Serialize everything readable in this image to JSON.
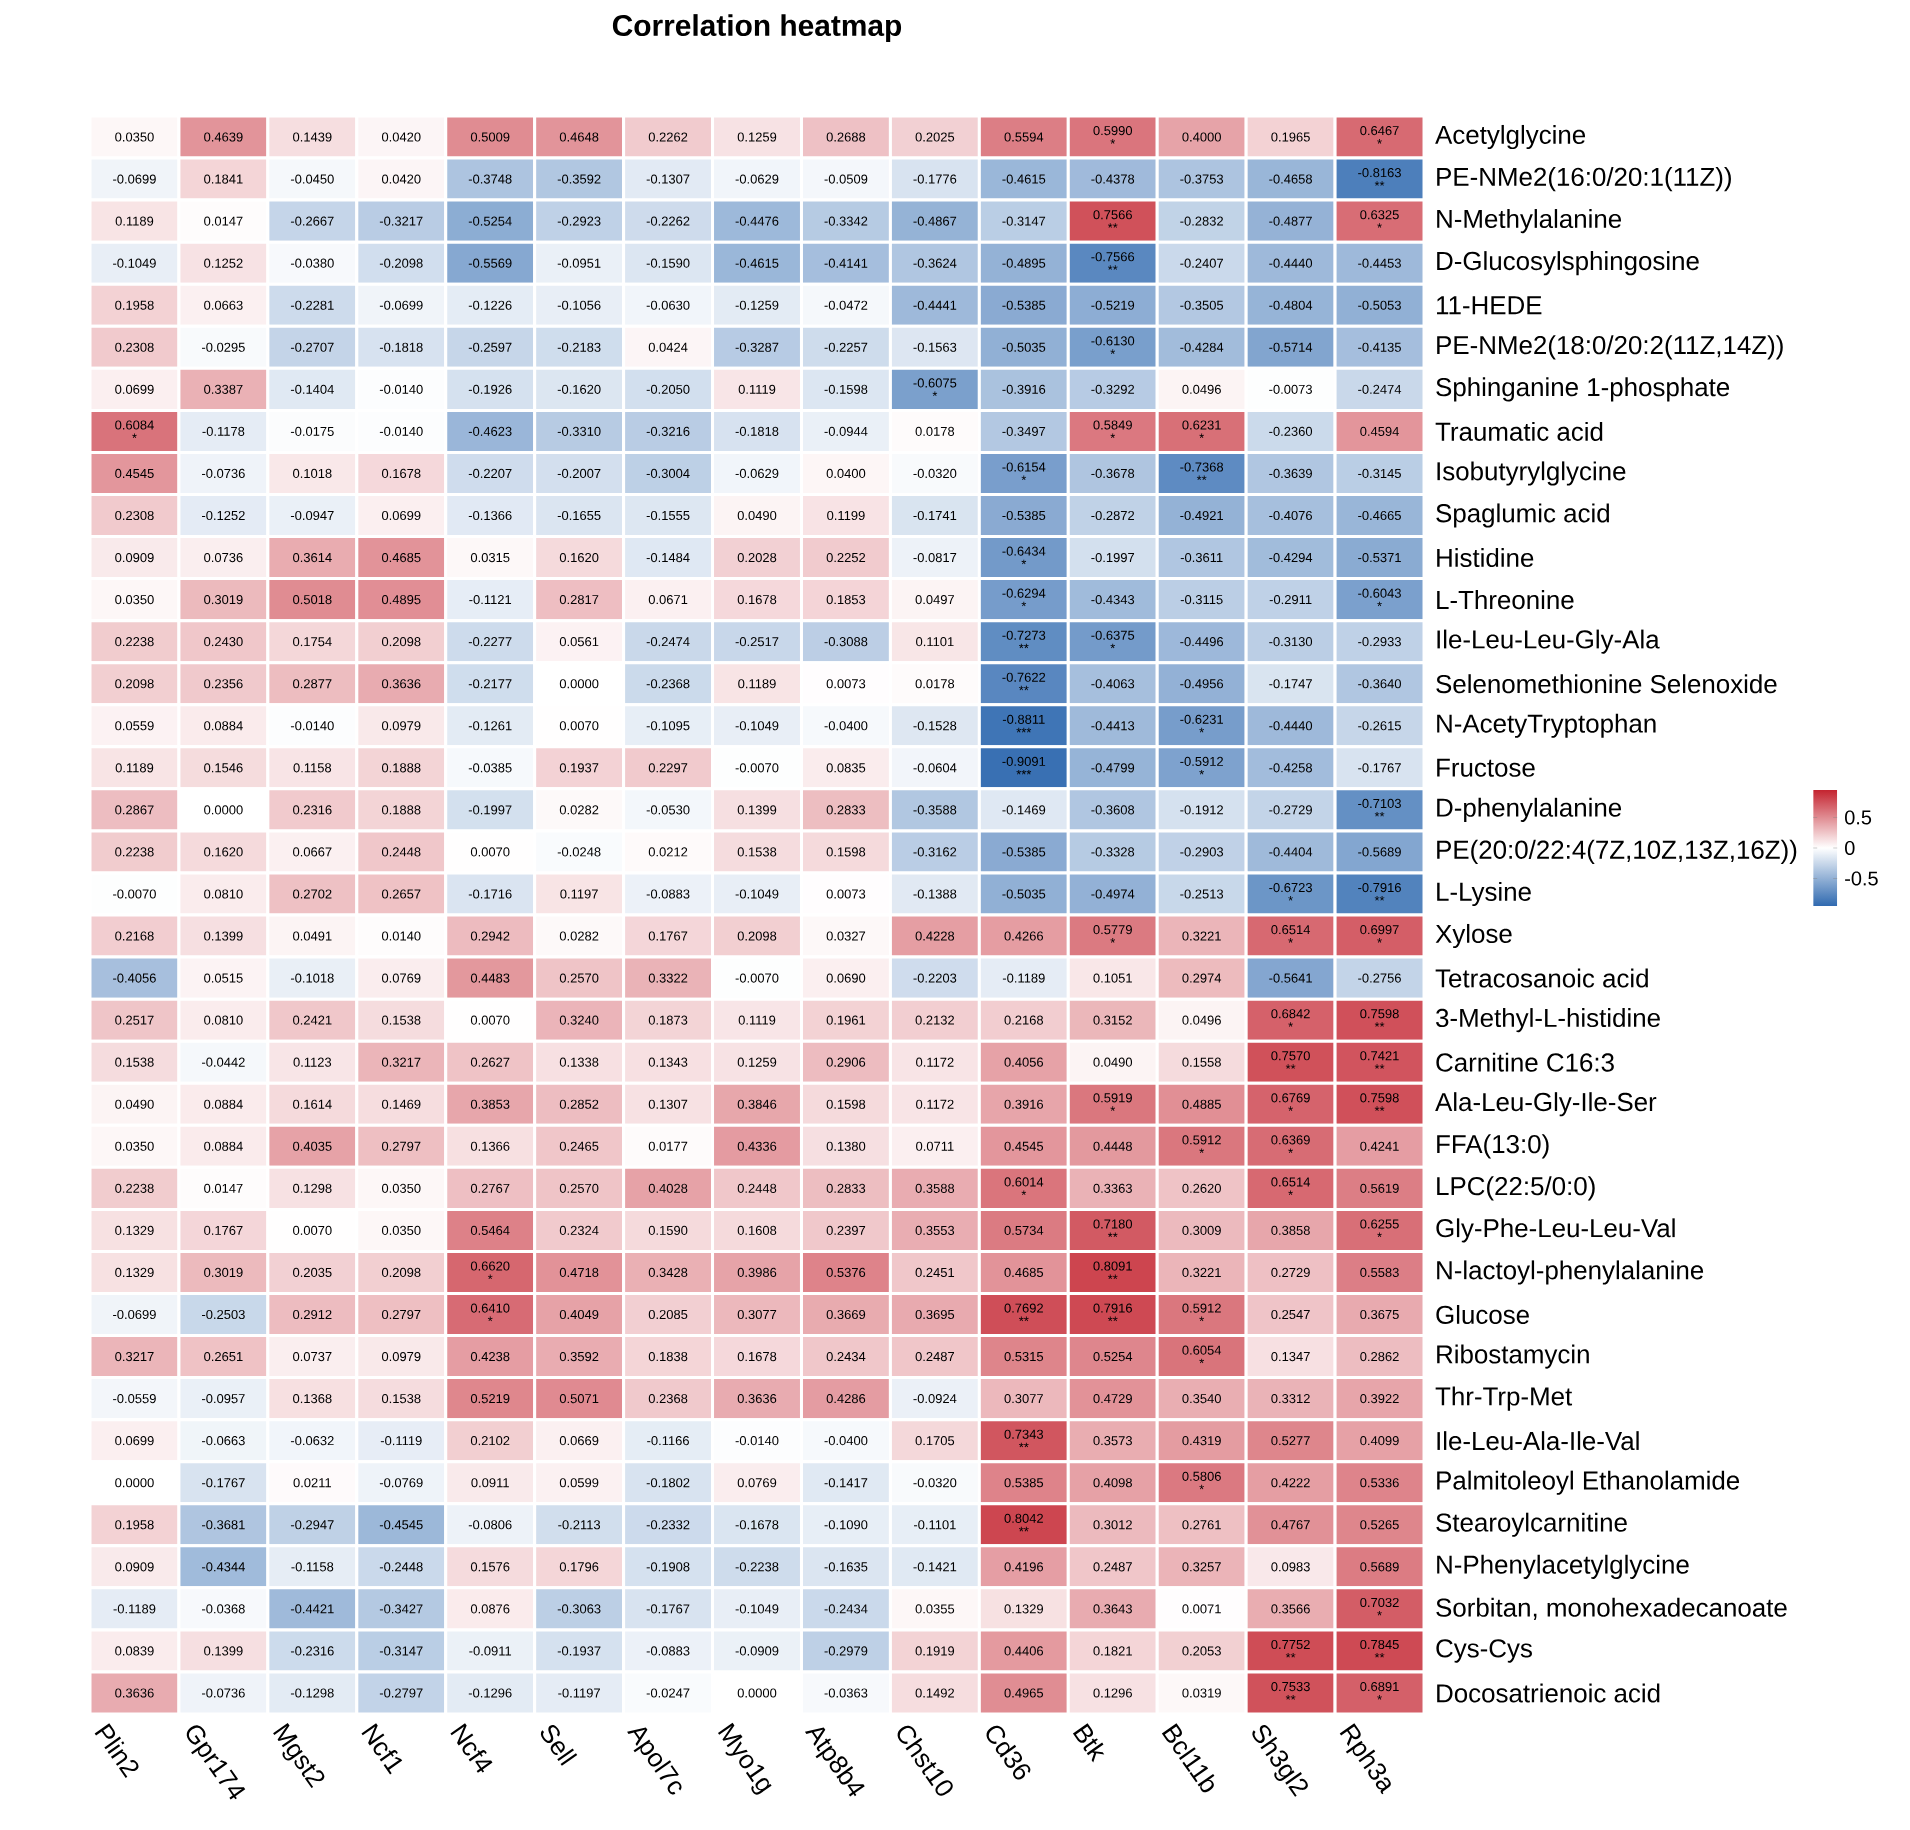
{
  "chart_data": {
    "type": "heatmap",
    "title": "Correlation heatmap",
    "categories": [
      "Plin2",
      "Gpr174",
      "Mgst2",
      "Ncf1",
      "Ncf4",
      "Sell",
      "Apol7c",
      "Myo1g",
      "Atp8b4",
      "Chst10",
      "Cd36",
      "Btk",
      "Bcl11b",
      "Sh3gl2",
      "Rph3a"
    ],
    "y_categories": [
      "Acetylglycine",
      "PE-NMe2(16:0/20:1(11Z))",
      "N-Methylalanine",
      "D-Glucosylsphingosine",
      "11-HEDE",
      "PE-NMe2(18:0/20:2(11Z,14Z))",
      "Sphinganine 1-phosphate",
      "Traumatic acid",
      "Isobutyrylglycine",
      "Spaglumic acid",
      "Histidine",
      "L-Threonine",
      "Ile-Leu-Leu-Gly-Ala",
      "Selenomethionine Selenoxide",
      "N-AcetyTryptophan",
      "Fructose",
      "D-phenylalanine",
      "PE(20:0/22:4(7Z,10Z,13Z,16Z))",
      "L-Lysine",
      "Xylose",
      "Tetracosanoic acid",
      "3-Methyl-L-histidine",
      "Carnitine C16:3",
      "Ala-Leu-Gly-Ile-Ser",
      "FFA(13:0)",
      "LPC(22:5/0:0)",
      "Gly-Phe-Leu-Leu-Val",
      "N-lactoyl-phenylalanine",
      "Glucose",
      "Ribostamycin",
      "Thr-Trp-Met",
      "Ile-Leu-Ala-Ile-Val",
      "Palmitoleoyl Ethanolamide",
      "Stearoylcarnitine",
      "N-Phenylacetylglycine",
      "Sorbitan, monohexadecanoate",
      "Cys-Cys",
      "Docosatrienoic acid"
    ],
    "cells": [
      [
        0.035,
        0.4639,
        0.1439,
        0.042,
        0.5009,
        0.4648,
        0.2262,
        0.1259,
        0.2688,
        0.2025,
        0.5594,
        0.599,
        0.4,
        0.1965,
        0.6467
      ],
      [
        -0.0699,
        0.1841,
        -0.045,
        0.042,
        -0.3748,
        -0.3592,
        -0.1307,
        -0.0629,
        -0.0509,
        -0.1776,
        -0.4615,
        -0.4378,
        -0.3753,
        -0.4658,
        -0.8163
      ],
      [
        0.1189,
        0.0147,
        -0.2667,
        -0.3217,
        -0.5254,
        -0.2923,
        -0.2262,
        -0.4476,
        -0.3342,
        -0.4867,
        -0.3147,
        0.7566,
        -0.2832,
        -0.4877,
        0.6325
      ],
      [
        -0.1049,
        0.1252,
        -0.038,
        -0.2098,
        -0.5569,
        -0.0951,
        -0.159,
        -0.4615,
        -0.4141,
        -0.3624,
        -0.4895,
        -0.7566,
        -0.2407,
        -0.444,
        -0.4453
      ],
      [
        0.1958,
        0.0663,
        -0.2281,
        -0.0699,
        -0.1226,
        -0.1056,
        -0.063,
        -0.1259,
        -0.0472,
        -0.4441,
        -0.5385,
        -0.5219,
        -0.3505,
        -0.4804,
        -0.5053
      ],
      [
        0.2308,
        -0.0295,
        -0.2707,
        -0.1818,
        -0.2597,
        -0.2183,
        0.0424,
        -0.3287,
        -0.2257,
        -0.1563,
        -0.5035,
        -0.613,
        -0.4284,
        -0.5714,
        -0.4135
      ],
      [
        0.0699,
        0.3387,
        -0.1404,
        -0.014,
        -0.1926,
        -0.162,
        -0.205,
        0.1119,
        -0.1598,
        -0.6075,
        -0.3916,
        -0.3292,
        0.0496,
        -0.0073,
        -0.2474
      ],
      [
        0.6084,
        -0.1178,
        -0.0175,
        -0.014,
        -0.4623,
        -0.331,
        -0.3216,
        -0.1818,
        -0.0944,
        0.0178,
        -0.3497,
        0.5849,
        0.6231,
        -0.236,
        0.4594
      ],
      [
        0.4545,
        -0.0736,
        0.1018,
        0.1678,
        -0.2207,
        -0.2007,
        -0.3004,
        -0.0629,
        0.04,
        -0.032,
        -0.6154,
        -0.3678,
        -0.7368,
        -0.3639,
        -0.3145
      ],
      [
        0.2308,
        -0.1252,
        -0.0947,
        0.0699,
        -0.1366,
        -0.1655,
        -0.1555,
        0.049,
        0.1199,
        -0.1741,
        -0.5385,
        -0.2872,
        -0.4921,
        -0.4076,
        -0.4665
      ],
      [
        0.0909,
        0.0736,
        0.3614,
        0.4685,
        0.0315,
        0.162,
        -0.1484,
        0.2028,
        0.2252,
        -0.0817,
        -0.6434,
        -0.1997,
        -0.3611,
        -0.4294,
        -0.5371
      ],
      [
        0.035,
        0.3019,
        0.5018,
        0.4895,
        -0.1121,
        0.2817,
        0.0671,
        0.1678,
        0.1853,
        0.0497,
        -0.6294,
        -0.4343,
        -0.3115,
        -0.2911,
        -0.6043
      ],
      [
        0.2238,
        0.243,
        0.1754,
        0.2098,
        -0.2277,
        0.0561,
        -0.2474,
        -0.2517,
        -0.3088,
        0.1101,
        -0.7273,
        -0.6375,
        -0.4496,
        -0.313,
        -0.2933
      ],
      [
        0.2098,
        0.2356,
        0.2877,
        0.3636,
        -0.2177,
        0.0,
        -0.2368,
        0.1189,
        0.0073,
        0.0178,
        -0.7622,
        -0.4063,
        -0.4956,
        -0.1747,
        -0.364
      ],
      [
        0.0559,
        0.0884,
        -0.014,
        0.0979,
        -0.1261,
        0.007,
        -0.1095,
        -0.1049,
        -0.04,
        -0.1528,
        -0.8811,
        -0.4413,
        -0.6231,
        -0.444,
        -0.2615
      ],
      [
        0.1189,
        0.1546,
        0.1158,
        0.1888,
        -0.0385,
        0.1937,
        0.2297,
        -0.007,
        0.0835,
        -0.0604,
        -0.9091,
        -0.4799,
        -0.5912,
        -0.4258,
        -0.1767
      ],
      [
        0.2867,
        0.0,
        0.2316,
        0.1888,
        -0.1997,
        0.0282,
        -0.053,
        0.1399,
        0.2833,
        -0.3588,
        -0.1469,
        -0.3608,
        -0.1912,
        -0.2729,
        -0.7103
      ],
      [
        0.2238,
        0.162,
        0.0667,
        0.2448,
        0.007,
        -0.0248,
        0.0212,
        0.1538,
        0.1598,
        -0.3162,
        -0.5385,
        -0.3328,
        -0.2903,
        -0.4404,
        -0.5689
      ],
      [
        -0.007,
        0.081,
        0.2702,
        0.2657,
        -0.1716,
        0.1197,
        -0.0883,
        -0.1049,
        0.0073,
        -0.1388,
        -0.5035,
        -0.4974,
        -0.2513,
        -0.6723,
        -0.7916
      ],
      [
        0.2168,
        0.1399,
        0.0491,
        0.014,
        0.2942,
        0.0282,
        0.1767,
        0.2098,
        0.0327,
        0.4228,
        0.4266,
        0.5779,
        0.3221,
        0.6514,
        0.6997
      ],
      [
        -0.4056,
        0.0515,
        -0.1018,
        0.0769,
        0.4483,
        0.257,
        0.3322,
        -0.007,
        0.069,
        -0.2203,
        -0.1189,
        0.1051,
        0.2974,
        -0.5641,
        -0.2756
      ],
      [
        0.2517,
        0.081,
        0.2421,
        0.1538,
        0.007,
        0.324,
        0.1873,
        0.1119,
        0.1961,
        0.2132,
        0.2168,
        0.3152,
        0.0496,
        0.6842,
        0.7598
      ],
      [
        0.1538,
        -0.0442,
        0.1123,
        0.3217,
        0.2627,
        0.1338,
        0.1343,
        0.1259,
        0.2906,
        0.1172,
        0.4056,
        0.049,
        0.1558,
        0.757,
        0.7421
      ],
      [
        0.049,
        0.0884,
        0.1614,
        0.1469,
        0.3853,
        0.2852,
        0.1307,
        0.3846,
        0.1598,
        0.1172,
        0.3916,
        0.5919,
        0.4885,
        0.6769,
        0.7598
      ],
      [
        0.035,
        0.0884,
        0.4035,
        0.2797,
        0.1366,
        0.2465,
        0.0177,
        0.4336,
        0.138,
        0.0711,
        0.4545,
        0.4448,
        0.5912,
        0.6369,
        0.4241
      ],
      [
        0.2238,
        0.0147,
        0.1298,
        0.035,
        0.2767,
        0.257,
        0.4028,
        0.2448,
        0.2833,
        0.3588,
        0.6014,
        0.3363,
        0.262,
        0.6514,
        0.5619
      ],
      [
        0.1329,
        0.1767,
        0.007,
        0.035,
        0.5464,
        0.2324,
        0.159,
        0.1608,
        0.2397,
        0.3553,
        0.5734,
        0.718,
        0.3009,
        0.3858,
        0.6255
      ],
      [
        0.1329,
        0.3019,
        0.2035,
        0.2098,
        0.662,
        0.4718,
        0.3428,
        0.3986,
        0.5376,
        0.2451,
        0.4685,
        0.8091,
        0.3221,
        0.2729,
        0.5583
      ],
      [
        -0.0699,
        -0.2503,
        0.2912,
        0.2797,
        0.641,
        0.4049,
        0.2085,
        0.3077,
        0.3669,
        0.3695,
        0.7692,
        0.7916,
        0.5912,
        0.2547,
        0.3675
      ],
      [
        0.3217,
        0.2651,
        0.0737,
        0.0979,
        0.4238,
        0.3592,
        0.1838,
        0.1678,
        0.2434,
        0.2487,
        0.5315,
        0.5254,
        0.6054,
        0.1347,
        0.2862
      ],
      [
        -0.0559,
        -0.0957,
        0.1368,
        0.1538,
        0.5219,
        0.5071,
        0.2368,
        0.3636,
        0.4286,
        -0.0924,
        0.3077,
        0.4729,
        0.354,
        0.3312,
        0.3922
      ],
      [
        0.0699,
        -0.0663,
        -0.0632,
        -0.1119,
        0.2102,
        0.0669,
        -0.1166,
        -0.014,
        -0.04,
        0.1705,
        0.7343,
        0.3573,
        0.4319,
        0.5277,
        0.4099
      ],
      [
        0.0,
        -0.1767,
        0.0211,
        -0.0769,
        0.0911,
        0.0599,
        -0.1802,
        0.0769,
        -0.1417,
        -0.032,
        0.5385,
        0.4098,
        0.5806,
        0.4222,
        0.5336
      ],
      [
        0.1958,
        -0.3681,
        -0.2947,
        -0.4545,
        -0.0806,
        -0.2113,
        -0.2332,
        -0.1678,
        -0.109,
        -0.1101,
        0.8042,
        0.3012,
        0.2761,
        0.4767,
        0.5265
      ],
      [
        0.0909,
        -0.4344,
        -0.1158,
        -0.2448,
        0.1576,
        0.1796,
        -0.1908,
        -0.2238,
        -0.1635,
        -0.1421,
        0.4196,
        0.2487,
        0.3257,
        0.0983,
        0.5689
      ],
      [
        -0.1189,
        -0.0368,
        -0.4421,
        -0.3427,
        0.0876,
        -0.3063,
        -0.1767,
        -0.1049,
        -0.2434,
        0.0355,
        0.1329,
        0.3643,
        0.0071,
        0.3566,
        0.7032
      ],
      [
        0.0839,
        0.1399,
        -0.2316,
        -0.3147,
        -0.0911,
        -0.1937,
        -0.0883,
        -0.0909,
        -0.2979,
        0.1919,
        0.4406,
        0.1821,
        0.2053,
        0.7752,
        0.7845
      ],
      [
        0.3636,
        -0.0736,
        -0.1298,
        -0.2797,
        -0.1296,
        -0.1197,
        -0.0247,
        0.0,
        -0.0363,
        0.1492,
        0.4965,
        0.1296,
        0.0319,
        0.7533,
        0.6891
      ]
    ],
    "cell_labels": [
      [
        "0.0350",
        "0.4639",
        "0.1439",
        "0.0420",
        "0.5009",
        "0.4648",
        "0.2262",
        "0.1259",
        "0.2688",
        "0.2025",
        "0.5594",
        "0.5990 *",
        "0.4000",
        "0.1965",
        "0.6467 *"
      ],
      [
        "-0.0699",
        "0.1841",
        "-0.0450",
        "0.0420",
        "-0.3748",
        "-0.3592",
        "-0.1307",
        "-0.0629",
        "-0.0509",
        "-0.1776",
        "-0.4615",
        "-0.4378",
        "-0.3753",
        "-0.4658",
        "-0.8163 **"
      ],
      [
        "0.1189",
        "0.0147",
        "-0.2667",
        "-0.3217",
        "-0.5254",
        "-0.2923",
        "-0.2262",
        "-0.4476",
        "-0.3342",
        "-0.4867",
        "-0.3147",
        "0.7566 **",
        "-0.2832",
        "-0.4877",
        "0.6325 *"
      ],
      [
        "-0.1049",
        "0.1252",
        "-0.0380",
        "-0.2098",
        "-0.5569",
        "-0.0951",
        "-0.1590",
        "-0.4615",
        "-0.4141",
        "-0.3624",
        "-0.4895",
        "-0.7566 **",
        "-0.2407",
        "-0.4440",
        "-0.4453"
      ],
      [
        "0.1958",
        "0.0663",
        "-0.2281",
        "-0.0699",
        "-0.1226",
        "-0.1056",
        "-0.0630",
        "-0.1259",
        "-0.0472",
        "-0.4441",
        "-0.5385",
        "-0.5219",
        "-0.3505",
        "-0.4804",
        "-0.5053"
      ],
      [
        "0.2308",
        "-0.0295",
        "-0.2707",
        "-0.1818",
        "-0.2597",
        "-0.2183",
        "0.0424",
        "-0.3287",
        "-0.2257",
        "-0.1563",
        "-0.5035",
        "-0.6130 *",
        "-0.4284",
        "-0.5714",
        "-0.4135"
      ],
      [
        "0.0699",
        "0.3387",
        "-0.1404",
        "-0.0140",
        "-0.1926",
        "-0.1620",
        "-0.2050",
        "0.1119",
        "-0.1598",
        "-0.6075 *",
        "-0.3916",
        "-0.3292",
        "0.0496",
        "-0.0073",
        "-0.2474"
      ],
      [
        "0.6084 *",
        "-0.1178",
        "-0.0175",
        "-0.0140",
        "-0.4623",
        "-0.3310",
        "-0.3216",
        "-0.1818",
        "-0.0944",
        "0.0178",
        "-0.3497",
        "0.5849 *",
        "0.6231 *",
        "-0.2360",
        "0.4594"
      ],
      [
        "0.4545",
        "-0.0736",
        "0.1018",
        "0.1678",
        "-0.2207",
        "-0.2007",
        "-0.3004",
        "-0.0629",
        "0.0400",
        "-0.0320",
        "-0.6154 *",
        "-0.3678",
        "-0.7368 **",
        "-0.3639",
        "-0.3145"
      ],
      [
        "0.2308",
        "-0.1252",
        "-0.0947",
        "0.0699",
        "-0.1366",
        "-0.1655",
        "-0.1555",
        "0.0490",
        "0.1199",
        "-0.1741",
        "-0.5385",
        "-0.2872",
        "-0.4921",
        "-0.4076",
        "-0.4665"
      ],
      [
        "0.0909",
        "0.0736",
        "0.3614",
        "0.4685",
        "0.0315",
        "0.1620",
        "-0.1484",
        "0.2028",
        "0.2252",
        "-0.0817",
        "-0.6434 *",
        "-0.1997",
        "-0.3611",
        "-0.4294",
        "-0.5371"
      ],
      [
        "0.0350",
        "0.3019",
        "0.5018",
        "0.4895",
        "-0.1121",
        "0.2817",
        "0.0671",
        "0.1678",
        "0.1853",
        "0.0497",
        "-0.6294 *",
        "-0.4343",
        "-0.3115",
        "-0.2911",
        "-0.6043 *"
      ],
      [
        "0.2238",
        "0.2430",
        "0.1754",
        "0.2098",
        "-0.2277",
        "0.0561",
        "-0.2474",
        "-0.2517",
        "-0.3088",
        "0.1101",
        "-0.7273 **",
        "-0.6375 *",
        "-0.4496",
        "-0.3130",
        "-0.2933"
      ],
      [
        "0.2098",
        "0.2356",
        "0.2877",
        "0.3636",
        "-0.2177",
        "0.0000",
        "-0.2368",
        "0.1189",
        "0.0073",
        "0.0178",
        "-0.7622 **",
        "-0.4063",
        "-0.4956",
        "-0.1747",
        "-0.3640"
      ],
      [
        "0.0559",
        "0.0884",
        "-0.0140",
        "0.0979",
        "-0.1261",
        "0.0070",
        "-0.1095",
        "-0.1049",
        "-0.0400",
        "-0.1528",
        "-0.8811 ***",
        "-0.4413",
        "-0.6231 *",
        "-0.4440",
        "-0.2615"
      ],
      [
        "0.1189",
        "0.1546",
        "0.1158",
        "0.1888",
        "-0.0385",
        "0.1937",
        "0.2297",
        "-0.0070",
        "0.0835",
        "-0.0604",
        "-0.9091 ***",
        "-0.4799",
        "-0.5912 *",
        "-0.4258",
        "-0.1767"
      ],
      [
        "0.2867",
        "0.0000",
        "0.2316",
        "0.1888",
        "-0.1997",
        "0.0282",
        "-0.0530",
        "0.1399",
        "0.2833",
        "-0.3588",
        "-0.1469",
        "-0.3608",
        "-0.1912",
        "-0.2729",
        "-0.7103 **"
      ],
      [
        "0.2238",
        "0.1620",
        "0.0667",
        "0.2448",
        "0.0070",
        "-0.0248",
        "0.0212",
        "0.1538",
        "0.1598",
        "-0.3162",
        "-0.5385",
        "-0.3328",
        "-0.2903",
        "-0.4404",
        "-0.5689"
      ],
      [
        "-0.0070",
        "0.0810",
        "0.2702",
        "0.2657",
        "-0.1716",
        "0.1197",
        "-0.0883",
        "-0.1049",
        "0.0073",
        "-0.1388",
        "-0.5035",
        "-0.4974",
        "-0.2513",
        "-0.6723 *",
        "-0.7916 **"
      ],
      [
        "0.2168",
        "0.1399",
        "0.0491",
        "0.0140",
        "0.2942",
        "0.0282",
        "0.1767",
        "0.2098",
        "0.0327",
        "0.4228",
        "0.4266",
        "0.5779 *",
        "0.3221",
        "0.6514 *",
        "0.6997 *"
      ],
      [
        "-0.4056",
        "0.0515",
        "-0.1018",
        "0.0769",
        "0.4483",
        "0.2570",
        "0.3322",
        "-0.0070",
        "0.0690",
        "-0.2203",
        "-0.1189",
        "0.1051",
        "0.2974",
        "-0.5641",
        "-0.2756"
      ],
      [
        "0.2517",
        "0.0810",
        "0.2421",
        "0.1538",
        "0.0070",
        "0.3240",
        "0.1873",
        "0.1119",
        "0.1961",
        "0.2132",
        "0.2168",
        "0.3152",
        "0.0496",
        "0.6842 *",
        "0.7598 **"
      ],
      [
        "0.1538",
        "-0.0442",
        "0.1123",
        "0.3217",
        "0.2627",
        "0.1338",
        "0.1343",
        "0.1259",
        "0.2906",
        "0.1172",
        "0.4056",
        "0.0490",
        "0.1558",
        "0.7570 **",
        "0.7421 **"
      ],
      [
        "0.0490",
        "0.0884",
        "0.1614",
        "0.1469",
        "0.3853",
        "0.2852",
        "0.1307",
        "0.3846",
        "0.1598",
        "0.1172",
        "0.3916",
        "0.5919 *",
        "0.4885",
        "0.6769 *",
        "0.7598 **"
      ],
      [
        "0.0350",
        "0.0884",
        "0.4035",
        "0.2797",
        "0.1366",
        "0.2465",
        "0.0177",
        "0.4336",
        "0.1380",
        "0.0711",
        "0.4545",
        "0.4448",
        "0.5912 *",
        "0.6369 *",
        "0.4241"
      ],
      [
        "0.2238",
        "0.0147",
        "0.1298",
        "0.0350",
        "0.2767",
        "0.2570",
        "0.4028",
        "0.2448",
        "0.2833",
        "0.3588",
        "0.6014 *",
        "0.3363",
        "0.2620",
        "0.6514 *",
        "0.5619"
      ],
      [
        "0.1329",
        "0.1767",
        "0.0070",
        "0.0350",
        "0.5464",
        "0.2324",
        "0.1590",
        "0.1608",
        "0.2397",
        "0.3553",
        "0.5734",
        "0.7180 **",
        "0.3009",
        "0.3858",
        "0.6255 *"
      ],
      [
        "0.1329",
        "0.3019",
        "0.2035",
        "0.2098",
        "0.6620 *",
        "0.4718",
        "0.3428",
        "0.3986",
        "0.5376",
        "0.2451",
        "0.4685",
        "0.8091 **",
        "0.3221",
        "0.2729",
        "0.5583"
      ],
      [
        "-0.0699",
        "-0.2503",
        "0.2912",
        "0.2797",
        "0.6410 *",
        "0.4049",
        "0.2085",
        "0.3077",
        "0.3669",
        "0.3695",
        "0.7692 **",
        "0.7916 **",
        "0.5912 *",
        "0.2547",
        "0.3675"
      ],
      [
        "0.3217",
        "0.2651",
        "0.0737",
        "0.0979",
        "0.4238",
        "0.3592",
        "0.1838",
        "0.1678",
        "0.2434",
        "0.2487",
        "0.5315",
        "0.5254",
        "0.6054 *",
        "0.1347",
        "0.2862"
      ],
      [
        "-0.0559",
        "-0.0957",
        "0.1368",
        "0.1538",
        "0.5219",
        "0.5071",
        "0.2368",
        "0.3636",
        "0.4286",
        "-0.0924",
        "0.3077",
        "0.4729",
        "0.3540",
        "0.3312",
        "0.3922"
      ],
      [
        "0.0699",
        "-0.0663",
        "-0.0632",
        "-0.1119",
        "0.2102",
        "0.0669",
        "-0.1166",
        "-0.0140",
        "-0.0400",
        "0.1705",
        "0.7343 **",
        "0.3573",
        "0.4319",
        "0.5277",
        "0.4099"
      ],
      [
        "0.0000",
        "-0.1767",
        "0.0211",
        "-0.0769",
        "0.0911",
        "0.0599",
        "-0.1802",
        "0.0769",
        "-0.1417",
        "-0.0320",
        "0.5385",
        "0.4098",
        "0.5806 *",
        "0.4222",
        "0.5336"
      ],
      [
        "0.1958",
        "-0.3681",
        "-0.2947",
        "-0.4545",
        "-0.0806",
        "-0.2113",
        "-0.2332",
        "-0.1678",
        "-0.1090",
        "-0.1101",
        "0.8042 **",
        "0.3012",
        "0.2761",
        "0.4767",
        "0.5265"
      ],
      [
        "0.0909",
        "-0.4344",
        "-0.1158",
        "-0.2448",
        "0.1576",
        "0.1796",
        "-0.1908",
        "-0.2238",
        "-0.1635",
        "-0.1421",
        "0.4196",
        "0.2487",
        "0.3257",
        "0.0983",
        "0.5689"
      ],
      [
        "-0.1189",
        "-0.0368",
        "-0.4421",
        "-0.3427",
        "0.0876",
        "-0.3063",
        "-0.1767",
        "-0.1049",
        "-0.2434",
        "0.0355",
        "0.1329",
        "0.3643",
        "0.0071",
        "0.3566",
        "0.7032 *"
      ],
      [
        "0.0839",
        "0.1399",
        "-0.2316",
        "-0.3147",
        "-0.0911",
        "-0.1937",
        "-0.0883",
        "-0.0909",
        "-0.2979",
        "0.1919",
        "0.4406",
        "0.1821",
        "0.2053",
        "0.7752 **",
        "0.7845 **"
      ],
      [
        "0.3636",
        "-0.0736",
        "-0.1298",
        "-0.2797",
        "-0.1296",
        "-0.1197",
        "-0.0247",
        "0.0000",
        "-0.0363",
        "0.1492",
        "0.4965",
        "0.1296",
        "0.0319",
        "0.7533 **",
        "0.6891 *"
      ]
    ],
    "clim": [
      -0.95,
      0.95
    ],
    "cticks": [
      0.5,
      0,
      -0.5
    ]
  }
}
